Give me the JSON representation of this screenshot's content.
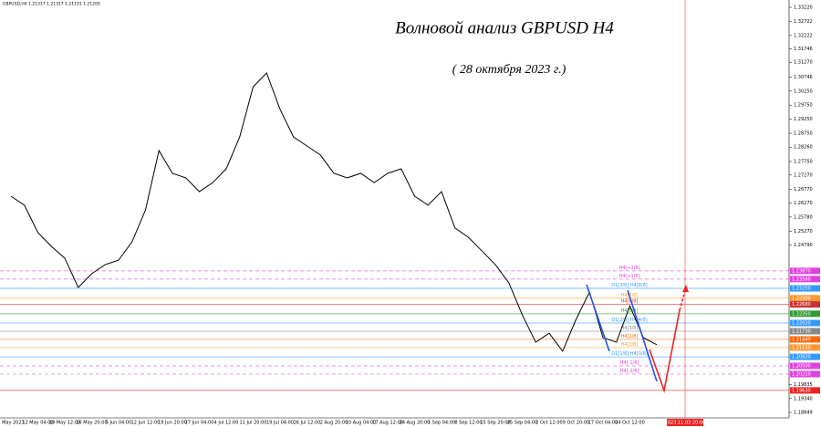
{
  "chart_data": {
    "type": "line",
    "title": "Волновой анализ GBPUSD H4",
    "subtitle": "( 28 октября  2023 г.)",
    "symbol_info": "GBPUSD,H4  1.21317 1.21317 1.21101 1.21200",
    "vline_label": "2023.11.03 20:00",
    "categories": [
      "4 May 2023",
      null,
      "12 May 04:00",
      null,
      "19 May 12:00",
      null,
      "26 May 20:00",
      null,
      "5 Jun 04:00",
      null,
      "12 Jun 12:00",
      null,
      "19 Jun 20:00",
      null,
      "27 Jun 04:00",
      null,
      "4 Jul 12:00",
      null,
      "11 Jul 20:00",
      null,
      "19 Jul 04:00",
      null,
      "26 Jul 12:00",
      null,
      "2 Aug 20:00",
      null,
      "10 Aug 04:00",
      null,
      "17 Aug 12:00",
      null,
      "24 Aug 20:00",
      null,
      "1 Sep 04:00",
      null,
      "8 Sep 12:00",
      null,
      "15 Sep 20:00",
      null,
      "25 Sep 04:00",
      null,
      "2 Oct 12:00",
      null,
      "9 Oct 20:00",
      null,
      "17 Oct 04:00",
      null,
      "24 Oct 12:00",
      null,
      null
    ],
    "series": [
      {
        "name": "GBPUSD,H4",
        "color": "#000000",
        "values": [
          1.2652,
          1.262,
          1.2523,
          1.2474,
          1.2432,
          1.2328,
          1.2377,
          1.2409,
          1.2425,
          1.249,
          1.2603,
          1.2814,
          1.2733,
          1.2717,
          1.2668,
          1.27,
          1.2749,
          1.2862,
          1.304,
          1.3089,
          1.296,
          1.2862,
          1.283,
          1.2798,
          1.2733,
          1.2717,
          1.2733,
          1.27,
          1.2733,
          1.2749,
          1.2652,
          1.262,
          1.2668,
          1.2539,
          1.2506,
          1.2458,
          1.2409,
          1.2345,
          1.2231,
          1.2134,
          1.2166,
          1.2102,
          1.2215,
          1.2312,
          1.215,
          1.2134,
          1.2263,
          1.215,
          1.2125
        ]
      }
    ],
    "ylim": [
      1.18655,
      1.33479
    ],
    "yticks": [
      {
        "value": 1.3322,
        "label": "1.33220"
      },
      {
        "value": 1.32722,
        "label": "1.32722"
      },
      {
        "value": 1.32222,
        "label": "1.32222"
      },
      {
        "value": 1.31746,
        "label": "1.31746"
      },
      {
        "value": 1.3127,
        "label": "1.31270"
      },
      {
        "value": 1.30746,
        "label": "1.30746"
      },
      {
        "value": 1.3025,
        "label": "1.30250"
      },
      {
        "value": 1.2975,
        "label": "1.29750"
      },
      {
        "value": 1.2925,
        "label": "1.29250"
      },
      {
        "value": 1.2875,
        "label": "1.28750"
      },
      {
        "value": 1.2826,
        "label": "1.28260"
      },
      {
        "value": 1.2775,
        "label": "1.27750"
      },
      {
        "value": 1.2727,
        "label": "1.27270"
      },
      {
        "value": 1.2677,
        "label": "1.26770"
      },
      {
        "value": 1.2627,
        "label": "1.26270"
      },
      {
        "value": 1.2578,
        "label": "1.25780"
      },
      {
        "value": 1.2527,
        "label": "1.25270"
      },
      {
        "value": 1.2479,
        "label": "1.24790"
      },
      {
        "value": 1.19835,
        "label": "1.19835"
      },
      {
        "value": 1.1934,
        "label": "1.19340"
      },
      {
        "value": 1.18849,
        "label": "1.18849"
      }
    ],
    "levels": [
      {
        "name": "H4[+2/8]",
        "value": 1.2387,
        "label": "1.23870",
        "color": "#e040e0",
        "dashed": true
      },
      {
        "name": "H4[+1/8]",
        "value": 1.2358,
        "label": "1.23580",
        "color": "#e040e0",
        "dashed": true
      },
      {
        "name": "D1[3/8] H4[8/8]",
        "value": 1.2325,
        "label": "1.23250",
        "color": "#3399ff",
        "dashed": false
      },
      {
        "name": "H4[7/8]",
        "value": 1.229,
        "label": "1.22900",
        "color": "#ff9933",
        "dashed": false
      },
      {
        "name": "H4[6/8]",
        "value": 1.2268,
        "label": "1.22680",
        "color": "#cc3333",
        "dashed": false
      },
      {
        "name": "H4[5/8]",
        "value": 1.2235,
        "label": "1.22350",
        "color": "#339933",
        "dashed": false
      },
      {
        "name": "D1[2/8] H4[4/8]",
        "value": 1.2202,
        "label": "1.22020",
        "color": "#3399ff",
        "dashed": false
      },
      {
        "name": "H4[3/8]",
        "value": 1.2173,
        "label": "1.21730",
        "color": "#888888",
        "dashed": false
      },
      {
        "name": "H4[2/8]",
        "value": 1.2144,
        "label": "1.21440",
        "color": "#ff6600",
        "dashed": false
      },
      {
        "name": "H4[1/8]",
        "value": 1.2115,
        "label": "1.21150",
        "color": "#ff9933",
        "dashed": false
      },
      {
        "name": "D1[1/8] H4[0/8]",
        "value": 1.2082,
        "label": "1.20820",
        "color": "#3399ff",
        "dashed": false
      },
      {
        "name": "H4[-1/8]",
        "value": 1.205,
        "label": "1.20500",
        "color": "#e040e0",
        "dashed": true
      },
      {
        "name": "H4[-2/8]",
        "value": 1.2021,
        "label": "1.20210",
        "color": "#e040e0",
        "dashed": true
      },
      {
        "value": 1.1963,
        "label": "1.19630",
        "color": "#ee2222",
        "dashed": false
      }
    ]
  }
}
